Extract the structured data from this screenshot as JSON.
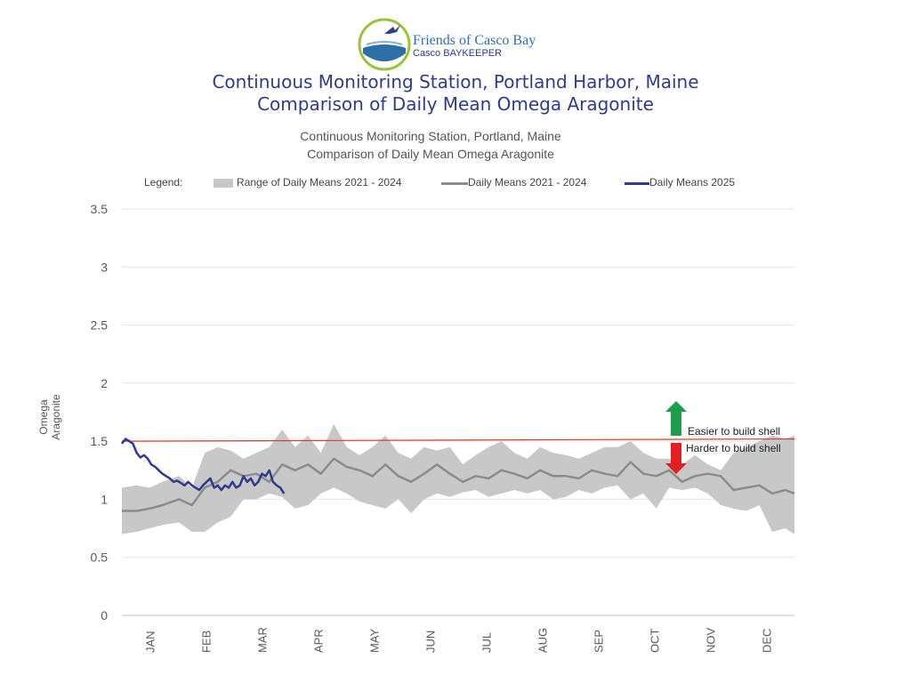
{
  "logo": {
    "line1": "Friends of Casco Bay",
    "line2": "Casco BAYKEEPER",
    "icon": "bird-over-water-logo"
  },
  "header": {
    "title_line1": "Continuous Monitoring Station, Portland Harbor, Maine",
    "title_line2": "Comparison of Daily Mean Omega Aragonite",
    "subtitle_line1": "Continuous Monitoring Station, Portland, Maine",
    "subtitle_line2": "Comparison of Daily Mean Omega Aragonite"
  },
  "legend": {
    "label": "Legend:",
    "range": "Range of Daily Means 2021 - 2024",
    "mean": "Daily Means 2021 - 2024",
    "current": "Daily Means 2025"
  },
  "annotations": {
    "easier": "Easier to build shell",
    "harder": "Harder to build shell"
  },
  "colors": {
    "range_fill": "#c8c8c8",
    "mean_line": "#8c8c8c",
    "current_line": "#2e3b8f",
    "threshold_line": "#d93a2b",
    "up_arrow": "#1e9e4a",
    "down_arrow": "#e02020",
    "title": "#2e3b8f"
  },
  "chart_data": {
    "type": "line",
    "ylabel": "Omega Aragonite",
    "ylim": [
      0,
      3.5
    ],
    "yticks": [
      "0",
      "0.5",
      "1",
      "1.5",
      "2",
      "2.5",
      "3",
      "3.5"
    ],
    "xlim": [
      0,
      365
    ],
    "month_labels": [
      "JAN",
      "FEB",
      "MAR",
      "APR",
      "MAY",
      "JUN",
      "JUL",
      "AUG",
      "SEP",
      "OCT",
      "NOV",
      "DEC"
    ],
    "grid": true,
    "threshold": {
      "y": 1.5,
      "y_end": 1.52
    },
    "range_2021_2024": {
      "x": [
        0,
        8,
        15,
        22,
        31,
        38,
        45,
        52,
        59,
        66,
        73,
        80,
        87,
        94,
        101,
        108,
        115,
        122,
        129,
        136,
        143,
        150,
        157,
        164,
        171,
        178,
        185,
        192,
        199,
        206,
        213,
        220,
        227,
        234,
        241,
        248,
        255,
        262,
        269,
        276,
        283,
        290,
        297,
        304,
        311,
        318,
        325,
        332,
        339,
        346,
        353,
        360,
        365
      ],
      "low": [
        0.7,
        0.72,
        0.75,
        0.78,
        0.8,
        0.72,
        0.72,
        0.8,
        0.85,
        1.0,
        1.0,
        1.05,
        1.02,
        0.92,
        0.95,
        1.05,
        1.1,
        1.05,
        0.98,
        0.95,
        0.92,
        1.0,
        0.88,
        1.0,
        1.05,
        1.02,
        1.06,
        1.08,
        1.02,
        1.05,
        1.08,
        1.05,
        1.08,
        1.0,
        1.02,
        1.08,
        1.05,
        1.1,
        1.12,
        1.0,
        1.05,
        0.92,
        1.1,
        1.08,
        1.1,
        1.05,
        0.95,
        0.92,
        0.9,
        0.95,
        0.72,
        0.75,
        0.7
      ],
      "high": [
        1.1,
        1.12,
        1.1,
        1.15,
        1.2,
        1.1,
        1.4,
        1.45,
        1.42,
        1.35,
        1.4,
        1.45,
        1.6,
        1.45,
        1.55,
        1.4,
        1.65,
        1.45,
        1.38,
        1.45,
        1.55,
        1.4,
        1.35,
        1.45,
        1.42,
        1.45,
        1.3,
        1.38,
        1.45,
        1.5,
        1.4,
        1.35,
        1.45,
        1.4,
        1.38,
        1.35,
        1.4,
        1.45,
        1.45,
        1.5,
        1.4,
        1.35,
        1.35,
        1.3,
        1.38,
        1.3,
        1.25,
        1.4,
        1.45,
        1.5,
        1.55,
        1.52,
        1.55
      ]
    },
    "series": [
      {
        "name": "Daily Means 2021 - 2024",
        "x": [
          0,
          8,
          15,
          22,
          31,
          38,
          45,
          52,
          59,
          66,
          73,
          80,
          87,
          94,
          101,
          108,
          115,
          122,
          129,
          136,
          143,
          150,
          157,
          164,
          171,
          178,
          185,
          192,
          199,
          206,
          213,
          220,
          227,
          234,
          241,
          248,
          255,
          262,
          269,
          276,
          283,
          290,
          297,
          304,
          311,
          318,
          325,
          332,
          339,
          346,
          353,
          360,
          365
        ],
        "y": [
          0.9,
          0.9,
          0.92,
          0.95,
          1.0,
          0.95,
          1.1,
          1.15,
          1.25,
          1.2,
          1.22,
          1.15,
          1.3,
          1.25,
          1.3,
          1.22,
          1.35,
          1.28,
          1.25,
          1.2,
          1.3,
          1.2,
          1.15,
          1.22,
          1.3,
          1.22,
          1.15,
          1.2,
          1.18,
          1.25,
          1.22,
          1.18,
          1.25,
          1.2,
          1.2,
          1.18,
          1.25,
          1.22,
          1.2,
          1.32,
          1.22,
          1.2,
          1.25,
          1.15,
          1.2,
          1.22,
          1.2,
          1.08,
          1.1,
          1.12,
          1.05,
          1.08,
          1.05
        ]
      },
      {
        "name": "Daily Means 2025",
        "x": [
          0,
          2,
          4,
          6,
          8,
          10,
          12,
          14,
          16,
          18,
          20,
          22,
          24,
          26,
          28,
          30,
          32,
          34,
          36,
          38,
          40,
          42,
          44,
          46,
          48,
          50,
          52,
          54,
          56,
          58,
          60,
          62,
          64,
          66,
          68,
          70,
          72,
          74,
          76,
          78,
          80,
          82,
          84,
          86,
          88
        ],
        "y": [
          1.48,
          1.52,
          1.5,
          1.48,
          1.4,
          1.36,
          1.38,
          1.35,
          1.3,
          1.28,
          1.25,
          1.22,
          1.2,
          1.18,
          1.15,
          1.16,
          1.14,
          1.12,
          1.15,
          1.12,
          1.1,
          1.08,
          1.12,
          1.15,
          1.18,
          1.1,
          1.12,
          1.08,
          1.12,
          1.1,
          1.15,
          1.1,
          1.12,
          1.2,
          1.15,
          1.18,
          1.12,
          1.15,
          1.22,
          1.2,
          1.25,
          1.15,
          1.12,
          1.1,
          1.05
        ]
      }
    ]
  }
}
